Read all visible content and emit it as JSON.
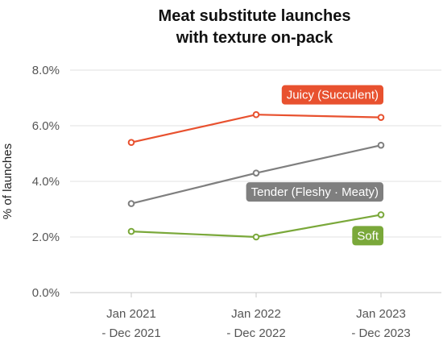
{
  "chart_data": {
    "type": "line",
    "title_lines": [
      "Meat substitute launches",
      "with texture on-pack"
    ],
    "xlabel": "",
    "ylabel": "% of launches",
    "ylim": [
      0,
      8
    ],
    "yticks": [
      "0.0%",
      "2.0%",
      "4.0%",
      "6.0%",
      "8.0%"
    ],
    "grid": "horizontal",
    "categories": [
      [
        "Jan 2021",
        "- Dec 2021"
      ],
      [
        "Jan 2022",
        "- Dec 2022"
      ],
      [
        "Jan 2023",
        "- Dec 2023"
      ]
    ],
    "series": [
      {
        "name": "Juicy (Succulent)",
        "values": [
          5.4,
          6.4,
          6.3
        ],
        "color": "#e8512f"
      },
      {
        "name": "Tender (Fleshy · Meaty)",
        "values": [
          3.2,
          4.3,
          5.3
        ],
        "color": "#7f7f7f"
      },
      {
        "name": "Soft",
        "values": [
          2.2,
          2.0,
          2.8
        ],
        "color": "#7aa83a"
      }
    ]
  }
}
